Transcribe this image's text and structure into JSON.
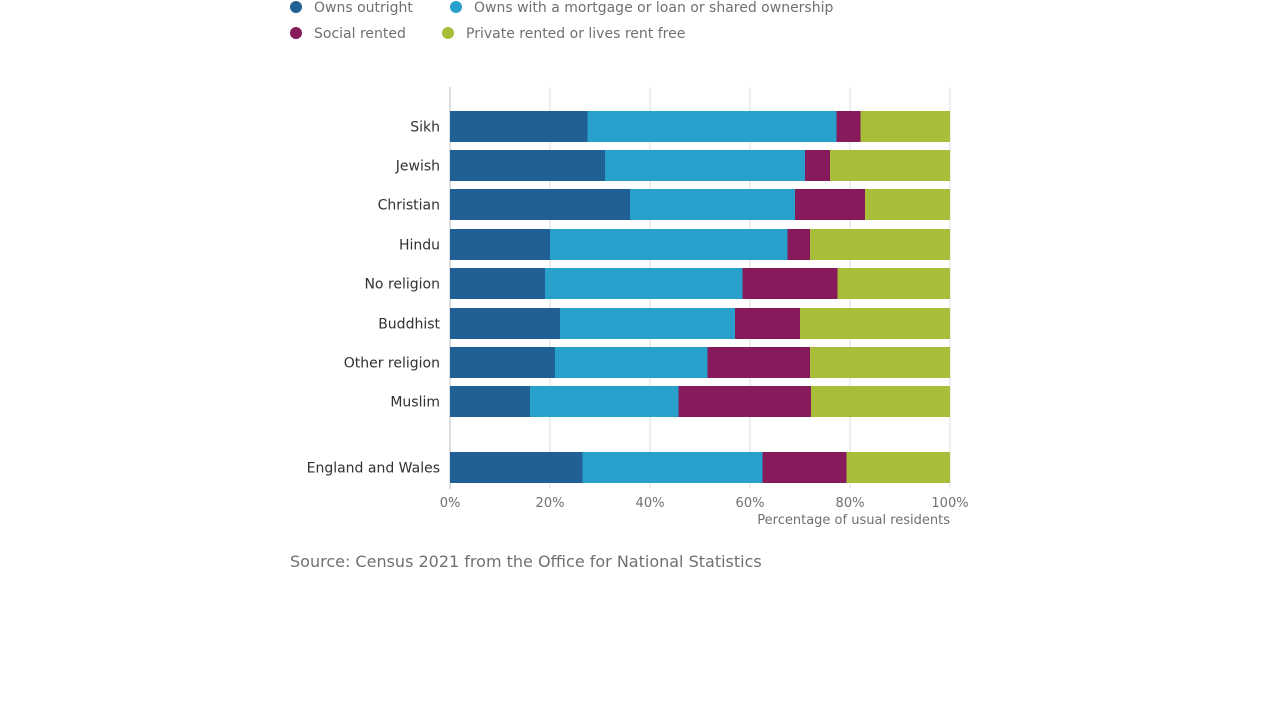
{
  "source_text": "Source: Census 2021 from the Office for National Statistics",
  "chart_data": {
    "type": "bar",
    "orientation": "horizontal",
    "stacked": true,
    "categories": [
      "Sikh",
      "Jewish",
      "Christian",
      "Hindu",
      "No religion",
      "Buddhist",
      "Other religion",
      "Muslim",
      "England and Wales"
    ],
    "series": [
      {
        "name": "Owns outright",
        "color": "#206095",
        "values": [
          27.5,
          31,
          36,
          20,
          19,
          22,
          21,
          16,
          26.5
        ]
      },
      {
        "name": "Owns with a mortgage or loan or shared ownership",
        "color": "#27a0cc",
        "values": [
          49.8,
          40,
          33,
          47.5,
          39.5,
          35,
          30.5,
          29.7,
          36
        ]
      },
      {
        "name": "Social rented",
        "color": "#871a5b",
        "values": [
          4.8,
          5,
          14,
          4.5,
          19,
          13,
          20.5,
          26.5,
          16.8
        ]
      },
      {
        "name": "Private rented or lives rent free",
        "color": "#a8bd3a",
        "values": [
          17.9,
          24,
          17,
          28,
          22.5,
          30,
          28,
          27.8,
          20.7
        ]
      }
    ],
    "xlabel": "Percentage of usual residents",
    "ylabel": "",
    "xlim": [
      0,
      100
    ],
    "x_ticks": [
      "0%",
      "20%",
      "40%",
      "60%",
      "80%",
      "100%"
    ],
    "grid": true,
    "legend_position": "top-left"
  }
}
